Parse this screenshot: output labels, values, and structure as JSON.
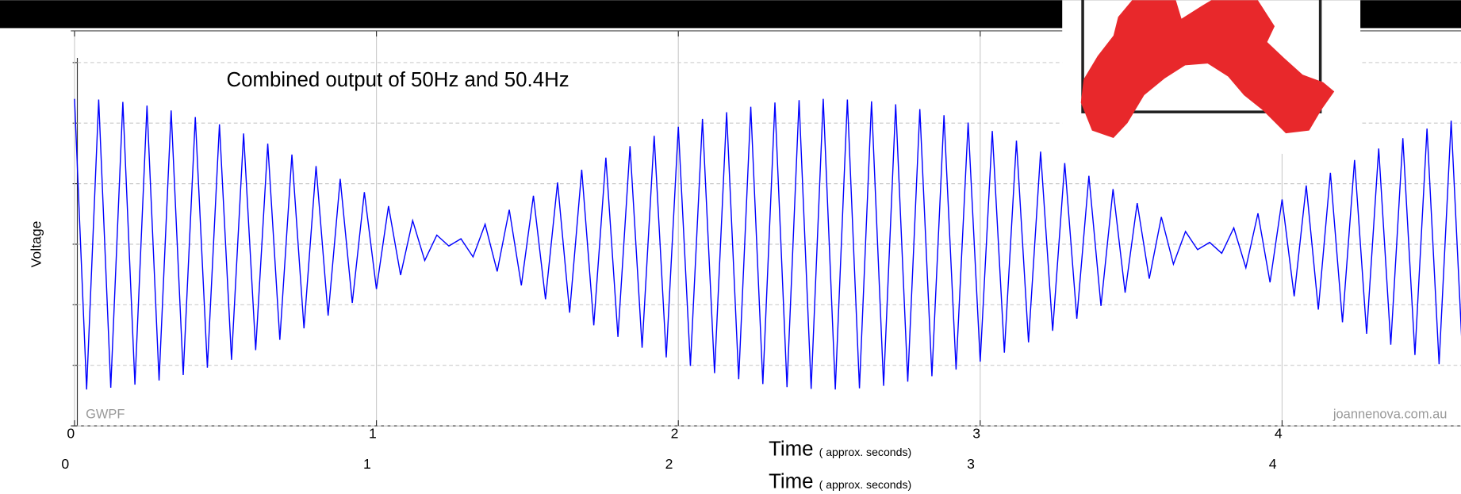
{
  "chart_data": {
    "type": "line",
    "title": "Combined output of 50Hz and 50.4Hz",
    "y_label": "Voltage",
    "x_label": "Time",
    "x_label_note": "( approx. seconds)",
    "watermark_left": "GWPF",
    "watermark_right": "joannenova.com.au",
    "xlim": [
      0,
      4.6
    ],
    "xticks": [
      0,
      1,
      2,
      3,
      4
    ],
    "ylim": [
      -3,
      3
    ],
    "yticks": [
      -3,
      -2,
      -1,
      0,
      1,
      2,
      3
    ],
    "grid": true,
    "x": [
      0,
      0.04,
      0.08,
      0.12,
      0.16,
      0.2,
      0.24,
      0.28,
      0.32,
      0.36,
      0.4,
      0.44,
      0.48,
      0.52,
      0.56,
      0.6,
      0.64,
      0.68,
      0.72,
      0.76,
      0.8,
      0.84,
      0.88,
      0.92,
      0.96,
      1,
      1.04,
      1.08,
      1.12,
      1.16,
      1.2,
      1.24,
      1.28,
      1.32,
      1.36,
      1.4,
      1.44,
      1.48,
      1.52,
      1.56,
      1.6,
      1.64,
      1.68,
      1.72,
      1.76,
      1.8,
      1.84,
      1.88,
      1.92,
      1.96,
      2,
      2.04,
      2.08,
      2.12,
      2.16,
      2.2,
      2.24,
      2.28,
      2.32,
      2.36,
      2.4,
      2.44,
      2.48,
      2.52,
      2.56,
      2.6,
      2.64,
      2.68,
      2.72,
      2.76,
      2.8,
      2.84,
      2.88,
      2.92,
      2.96,
      3,
      3.04,
      3.08,
      3.12,
      3.16,
      3.2,
      3.24,
      3.28,
      3.32,
      3.36,
      3.4,
      3.44,
      3.48,
      3.52,
      3.56,
      3.6,
      3.64,
      3.68,
      3.72,
      3.76,
      3.8,
      3.84,
      3.88,
      3.92,
      3.96,
      4,
      4.04,
      4.08,
      4.12,
      4.16,
      4.2,
      4.24,
      4.28,
      4.32,
      4.36,
      4.4,
      4.44,
      4.48,
      4.52,
      4.56,
      4.6
    ],
    "series": [
      {
        "color": "#0000ff",
        "values": [
          2.4,
          -2.4,
          2.39,
          -2.37,
          2.35,
          -2.32,
          2.29,
          -2.25,
          2.21,
          -2.16,
          2.1,
          -2.04,
          1.98,
          -1.91,
          1.83,
          -1.75,
          1.66,
          -1.58,
          1.48,
          -1.39,
          1.29,
          -1.18,
          1.08,
          -0.97,
          0.86,
          -0.74,
          0.63,
          -0.51,
          0.39,
          -0.27,
          0.15,
          -0.03,
          0.09,
          -0.21,
          0.33,
          -0.45,
          0.57,
          -0.68,
          0.8,
          -0.91,
          1.02,
          -1.13,
          1.23,
          -1.34,
          1.43,
          -1.53,
          1.62,
          -1.71,
          1.79,
          -1.87,
          1.94,
          -2.01,
          2.07,
          -2.13,
          2.18,
          -2.23,
          2.27,
          -2.31,
          2.34,
          -2.36,
          2.38,
          -2.39,
          2.4,
          -2.4,
          2.39,
          -2.38,
          2.36,
          -2.34,
          2.31,
          -2.27,
          2.23,
          -2.18,
          2.13,
          -2.07,
          2.01,
          -1.94,
          1.87,
          -1.79,
          1.71,
          -1.62,
          1.53,
          -1.43,
          1.34,
          -1.23,
          1.13,
          -1.02,
          0.91,
          -0.8,
          0.68,
          -0.57,
          0.45,
          -0.33,
          0.21,
          -0.09,
          0.03,
          -0.15,
          0.27,
          -0.39,
          0.51,
          -0.63,
          0.74,
          -0.86,
          0.97,
          -1.08,
          1.18,
          -1.29,
          1.39,
          -1.48,
          1.58,
          -1.66,
          1.75,
          -1.83,
          1.91,
          -1.98,
          2.04,
          -2.1
        ]
      }
    ]
  }
}
